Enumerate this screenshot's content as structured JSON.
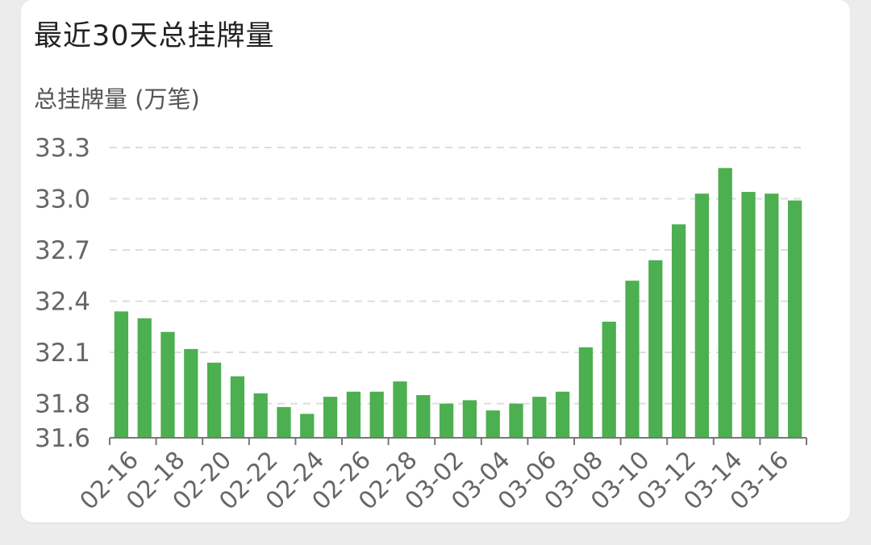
{
  "card": {
    "title": "最近30天总挂牌量"
  },
  "chart_data": {
    "type": "bar",
    "title": "最近30天总挂牌量",
    "ylabel": "总挂牌量 (万笔)",
    "xlabel": "",
    "ylim": [
      31.6,
      33.3
    ],
    "y_ticks": [
      "31.6",
      "31.8",
      "32.1",
      "32.4",
      "32.7",
      "33.0",
      "33.3"
    ],
    "x_tick_labels": [
      "02-16",
      "02-18",
      "02-20",
      "02-22",
      "02-24",
      "02-26",
      "02-28",
      "03-02",
      "03-04",
      "03-06",
      "03-08",
      "03-10",
      "03-12",
      "03-14",
      "03-16"
    ],
    "grid": "horizontal dashed",
    "bar_color": "#4caf50",
    "categories": [
      "02-16",
      "02-17",
      "02-18",
      "02-19",
      "02-20",
      "02-21",
      "02-22",
      "02-23",
      "02-24",
      "02-25",
      "02-26",
      "02-27",
      "02-28",
      "03-01",
      "03-02",
      "03-03",
      "03-04",
      "03-05",
      "03-06",
      "03-07",
      "03-08",
      "03-09",
      "03-10",
      "03-11",
      "03-12",
      "03-13",
      "03-14",
      "03-15",
      "03-16",
      "03-17"
    ],
    "values": [
      32.34,
      32.3,
      32.22,
      32.12,
      32.04,
      31.96,
      31.86,
      31.78,
      31.74,
      31.84,
      31.87,
      31.87,
      31.93,
      31.85,
      31.8,
      31.82,
      31.76,
      31.8,
      31.84,
      31.87,
      32.13,
      32.28,
      32.52,
      32.64,
      32.85,
      33.03,
      33.18,
      33.04,
      33.03,
      32.99
    ]
  }
}
